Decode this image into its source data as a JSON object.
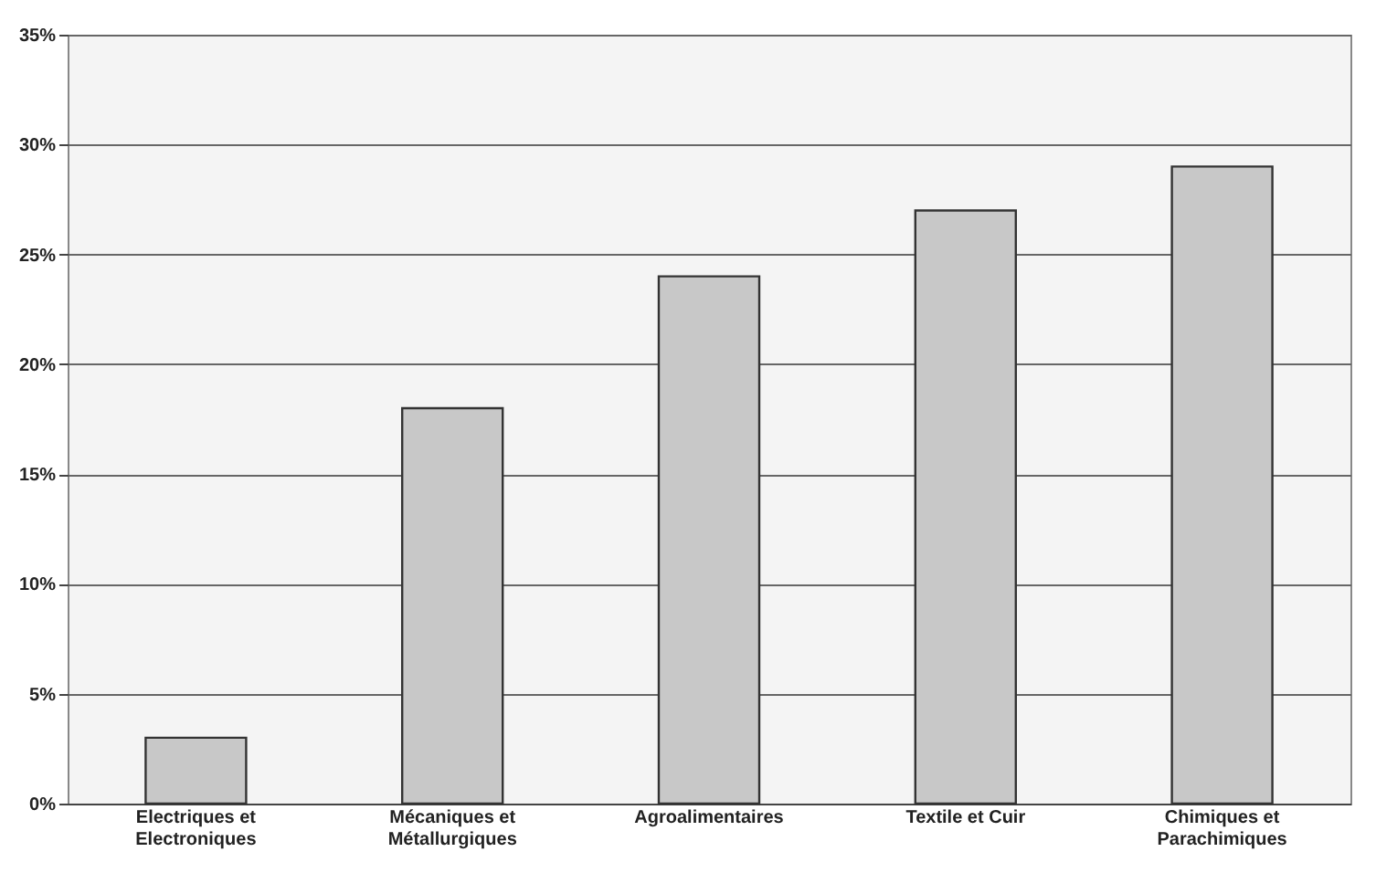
{
  "chart_data": {
    "type": "bar",
    "categories": [
      "Electriques et Electroniques",
      "Mécaniques et Métallurgiques",
      "Agroalimentaires",
      "Textile et Cuir",
      "Chimiques et Parachimiques"
    ],
    "values": [
      3,
      18,
      24,
      27,
      29
    ],
    "color": "#c8c8c8",
    "ylim": [
      0,
      35
    ],
    "yticks": [
      {
        "value": 0,
        "label": "0%"
      },
      {
        "value": 5,
        "label": "5%"
      },
      {
        "value": 10,
        "label": "10%"
      },
      {
        "value": 15,
        "label": "15%"
      },
      {
        "value": 20,
        "label": "20%"
      },
      {
        "value": 25,
        "label": "25%"
      },
      {
        "value": 30,
        "label": "30%"
      },
      {
        "value": 35,
        "label": "35%"
      }
    ],
    "grid": "y"
  }
}
